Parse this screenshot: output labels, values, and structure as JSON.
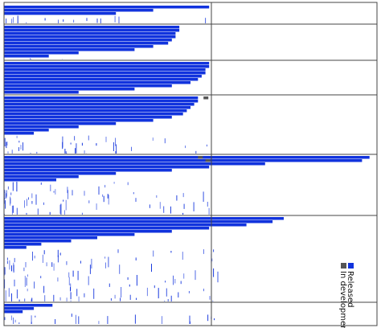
{
  "chart_data": {
    "type": "heatmap",
    "title": "",
    "xlabel": "",
    "ylabel": "",
    "grid": true,
    "legend_placement": "bottom-right, text rotated 90 degrees",
    "legend": [
      {
        "label": "Released",
        "status": "released"
      },
      {
        "label": "In development",
        "status": "in_development"
      }
    ],
    "colors": {
      "released": "#1133dd",
      "in_development": "#555555",
      "background": "#ffffff",
      "gridline": "#444444"
    },
    "section_boundaries": [
      7.0,
      18.0,
      29.0,
      44.0,
      68.0,
      96.0
    ],
    "column_split": 0.556,
    "rows_per_section": [
      {
        "section": 1,
        "blue_fill_fraction": [
          0.55,
          0.4,
          0.3
        ]
      },
      {
        "section": 2,
        "blue_fill_fraction": [
          0.47,
          0.47,
          0.46,
          0.46,
          0.45,
          0.44,
          0.4,
          0.35,
          0.2,
          0.12
        ]
      },
      {
        "section": 3,
        "blue_fill_fraction": [
          0.55,
          0.55,
          0.54,
          0.54,
          0.53,
          0.52,
          0.5,
          0.45,
          0.35,
          0.2
        ]
      },
      {
        "section": 4,
        "blue_fill_fraction": [
          0.52,
          0.52,
          0.51,
          0.5,
          0.49,
          0.48,
          0.45,
          0.4,
          0.3,
          0.2,
          0.12,
          0.08
        ]
      },
      {
        "section": 5,
        "blue_fill_fraction": [
          0.98,
          0.96,
          0.7,
          0.55,
          0.45,
          0.3,
          0.2,
          0.14
        ]
      },
      {
        "section": 6,
        "blue_fill_fraction": [
          0.75,
          0.72,
          0.65,
          0.55,
          0.45,
          0.35,
          0.25,
          0.18,
          0.1,
          0.06
        ]
      },
      {
        "section": 7,
        "blue_fill_fraction": [
          0.13,
          0.08,
          0.05
        ]
      }
    ],
    "in_development_markers": [
      {
        "section": 4,
        "row": 0,
        "x_fraction": 0.535
      },
      {
        "section": 5,
        "row": 0,
        "x_fraction": 0.52
      },
      {
        "section": 5,
        "row": 1,
        "x_fraction": 0.54
      }
    ]
  }
}
